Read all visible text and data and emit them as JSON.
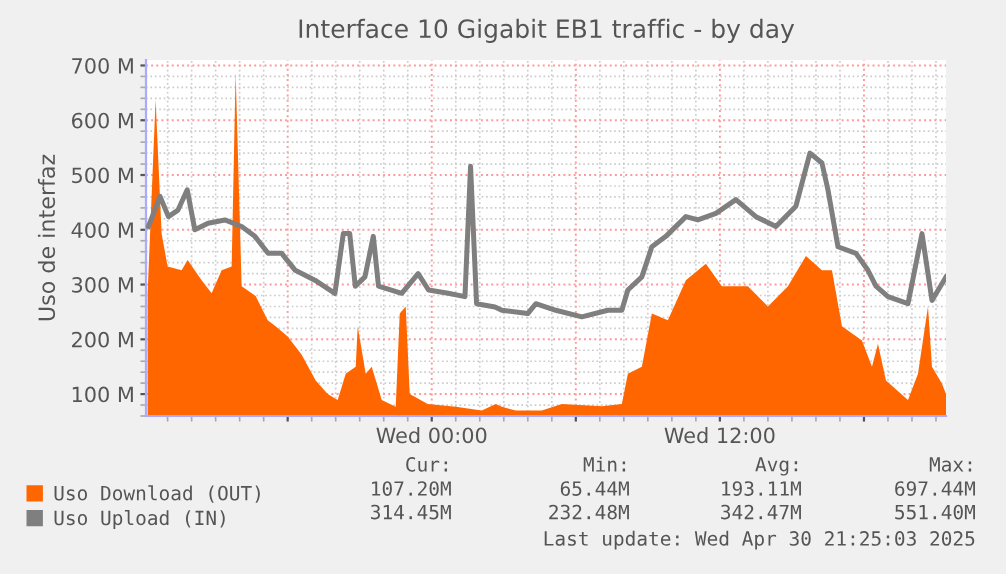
{
  "chart_data": {
    "type": "line",
    "title": "Interface 10 Gigabit EB1 traffic - by day",
    "ylabel": "Uso de interfaz",
    "xlim": [
      "2025-04-29T12:06",
      "2025-04-30T21:25"
    ],
    "xticks": [
      {
        "value": "2025-04-29T18:00",
        "label": null
      },
      {
        "value": "2025-04-30T00:00",
        "label": "Wed 00:00"
      },
      {
        "value": "2025-04-30T06:00",
        "label": null
      },
      {
        "value": "2025-04-30T12:00",
        "label": "Wed 12:00"
      },
      {
        "value": "2025-04-30T18:00",
        "label": null
      }
    ],
    "ylim": [
      60,
      710
    ],
    "yticks": [
      {
        "value": 100,
        "label": "100 M"
      },
      {
        "value": 200,
        "label": "200 M"
      },
      {
        "value": 300,
        "label": "300 M"
      },
      {
        "value": 400,
        "label": "400 M"
      },
      {
        "value": 500,
        "label": "500 M"
      },
      {
        "value": 600,
        "label": "600 M"
      },
      {
        "value": 700,
        "label": "700 M"
      }
    ],
    "grid": true,
    "legend": "bottom",
    "line_style": "solid",
    "series": [
      {
        "name": "Uso Download (OUT)",
        "type": "area",
        "color": "#ff6600",
        "x": [
          "2025-04-29T12:10",
          "2025-04-29T12:30",
          "2025-04-29T12:45",
          "2025-04-29T13:00",
          "2025-04-29T13:35",
          "2025-04-29T13:50",
          "2025-04-29T14:25",
          "2025-04-29T14:50",
          "2025-04-29T15:15",
          "2025-04-29T15:40",
          "2025-04-29T15:50",
          "2025-04-29T16:05",
          "2025-04-29T16:40",
          "2025-04-29T17:10",
          "2025-04-29T17:30",
          "2025-04-29T18:00",
          "2025-04-29T18:35",
          "2025-04-29T19:10",
          "2025-04-29T19:40",
          "2025-04-29T20:05",
          "2025-04-29T20:25",
          "2025-04-29T20:50",
          "2025-04-29T20:55",
          "2025-04-29T21:15",
          "2025-04-29T21:30",
          "2025-04-29T21:55",
          "2025-04-29T22:30",
          "2025-04-29T22:40",
          "2025-04-29T22:55",
          "2025-04-29T23:05",
          "2025-04-29T23:50",
          "2025-04-30T01:00",
          "2025-04-30T02:05",
          "2025-04-30T02:40",
          "2025-04-30T02:55",
          "2025-04-30T03:30",
          "2025-04-30T04:35",
          "2025-04-30T05:25",
          "2025-04-30T07:05",
          "2025-04-30T07:55",
          "2025-04-30T08:10",
          "2025-04-30T08:45",
          "2025-04-30T09:10",
          "2025-04-30T09:50",
          "2025-04-30T10:35",
          "2025-04-30T11:25",
          "2025-04-30T12:05",
          "2025-04-30T13:10",
          "2025-04-30T14:00",
          "2025-04-30T14:50",
          "2025-04-30T15:35",
          "2025-04-30T16:15",
          "2025-04-30T16:40",
          "2025-04-30T17:05",
          "2025-04-30T17:55",
          "2025-04-30T18:20",
          "2025-04-30T18:35",
          "2025-04-30T18:55",
          "2025-04-30T19:50",
          "2025-04-30T20:15",
          "2025-04-30T20:40",
          "2025-04-30T20:50",
          "2025-04-30T21:15",
          "2025-04-30T21:25"
        ],
        "values": [
          284,
          638,
          393,
          333,
          326,
          345,
          308,
          284,
          326,
          333,
          687,
          297,
          279,
          235,
          224,
          205,
          172,
          125,
          100,
          89,
          137,
          150,
          224,
          137,
          150,
          89,
          77,
          247,
          260,
          100,
          82,
          77,
          70,
          82,
          77,
          70,
          70,
          82,
          78,
          82,
          137,
          150,
          247,
          235,
          308,
          338,
          297,
          297,
          260,
          297,
          352,
          326,
          326,
          224,
          198,
          150,
          192,
          125,
          89,
          137,
          260,
          150,
          119,
          100
        ]
      },
      {
        "name": "Uso Upload (IN)",
        "color": "#7f7f7f",
        "x": [
          "2025-04-29T12:12",
          "2025-04-29T12:28",
          "2025-04-29T12:41",
          "2025-04-29T13:02",
          "2025-04-29T13:26",
          "2025-04-29T13:49",
          "2025-04-29T14:08",
          "2025-04-29T14:41",
          "2025-04-29T15:23",
          "2025-04-29T16:05",
          "2025-04-29T16:38",
          "2025-04-29T17:11",
          "2025-04-29T17:45",
          "2025-04-29T18:19",
          "2025-04-29T19:08",
          "2025-04-29T19:58",
          "2025-04-29T20:19",
          "2025-04-29T20:35",
          "2025-04-29T20:49",
          "2025-04-29T21:13",
          "2025-04-29T21:34",
          "2025-04-29T21:47",
          "2025-04-29T22:45",
          "2025-04-29T23:26",
          "2025-04-29T23:52",
          "2025-04-30T00:41",
          "2025-04-30T01:23",
          "2025-04-30T01:37",
          "2025-04-30T01:52",
          "2025-04-30T02:38",
          "2025-04-30T02:55",
          "2025-04-30T04:00",
          "2025-04-30T04:20",
          "2025-04-30T05:10",
          "2025-04-30T06:15",
          "2025-04-30T07:20",
          "2025-04-30T07:55",
          "2025-04-30T08:10",
          "2025-04-30T08:45",
          "2025-04-30T09:10",
          "2025-04-30T09:45",
          "2025-04-30T10:35",
          "2025-04-30T11:05",
          "2025-04-30T11:50",
          "2025-04-30T12:40",
          "2025-04-30T13:30",
          "2025-04-30T14:20",
          "2025-04-30T15:10",
          "2025-04-30T15:45",
          "2025-04-30T16:15",
          "2025-04-30T16:30",
          "2025-04-30T16:55",
          "2025-04-30T17:40",
          "2025-04-30T18:10",
          "2025-04-30T18:30",
          "2025-04-30T19:00",
          "2025-04-30T19:50",
          "2025-04-30T20:25",
          "2025-04-30T20:50",
          "2025-04-30T21:25"
        ],
        "values": [
          406,
          436,
          461,
          424,
          436,
          473,
          400,
          412,
          418,
          406,
          388,
          357,
          357,
          326,
          308,
          284,
          393,
          393,
          297,
          314,
          388,
          297,
          284,
          320,
          290,
          284,
          278,
          516,
          265,
          259,
          253,
          247,
          265,
          253,
          241,
          253,
          253,
          290,
          314,
          369,
          388,
          424,
          418,
          430,
          455,
          424,
          406,
          443,
          540,
          522,
          473,
          369,
          357,
          326,
          297,
          278,
          265,
          393,
          271,
          314
        ]
      }
    ],
    "annotations": [
      "Cur:",
      "Min:",
      "Avg:",
      "Max:",
      "107.20M",
      "65.44M",
      "193.11M",
      "697.44M",
      "314.45M",
      "232.48M",
      "342.47M",
      "551.40M",
      "Last update: Wed Apr 30 21:25:03 2025"
    ]
  }
}
